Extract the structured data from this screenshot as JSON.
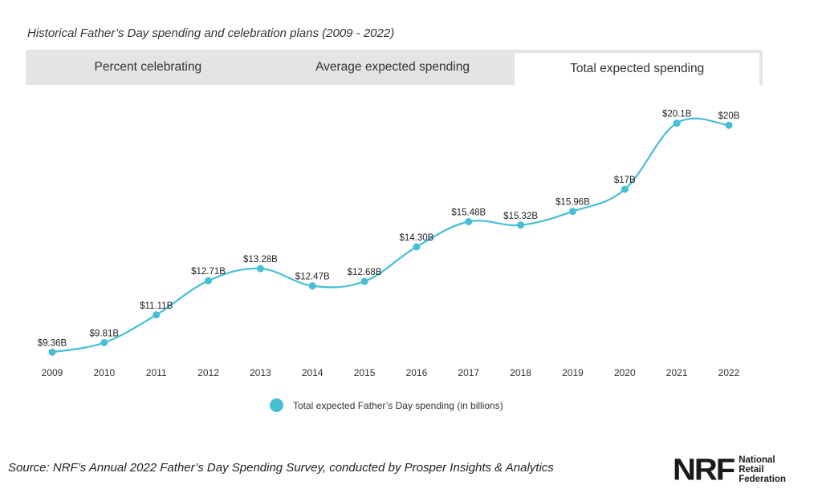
{
  "header": {
    "title": "Historical Father’s Day spending and celebration plans (2009 - 2022)"
  },
  "tabs": [
    {
      "label": "Percent celebrating",
      "active": false
    },
    {
      "label": "Average expected spending",
      "active": false
    },
    {
      "label": "Total expected spending",
      "active": true
    }
  ],
  "chart_data": {
    "type": "line",
    "x": [
      "2009",
      "2010",
      "2011",
      "2012",
      "2013",
      "2014",
      "2015",
      "2016",
      "2017",
      "2018",
      "2019",
      "2020",
      "2021",
      "2022"
    ],
    "series": [
      {
        "name": "Total expected Father’s Day spending (in billions)",
        "values": [
          9.36,
          9.81,
          11.11,
          12.71,
          13.28,
          12.47,
          12.68,
          14.3,
          15.48,
          15.32,
          15.96,
          17,
          20.1,
          20
        ],
        "data_labels": [
          "$9.36B",
          "$9.81B",
          "$11.11B",
          "$12.71B",
          "$13.28B",
          "$12.47B",
          "$12.68B",
          "$14.30B",
          "$15.48B",
          "$15.32B",
          "$15.96B",
          "$17B",
          "$20.1B",
          "$20B"
        ],
        "color": "#45bfd3"
      }
    ],
    "ylim": [
      9,
      21
    ],
    "grid": false,
    "legend_position": "bottom"
  },
  "footer": {
    "source": "Source: NRF’s Annual 2022 Father’s Day Spending Survey, conducted by Prosper Insights & Analytics",
    "logo_mark": "NRF",
    "logo_text": [
      "National",
      "Retail",
      "Federation"
    ]
  }
}
